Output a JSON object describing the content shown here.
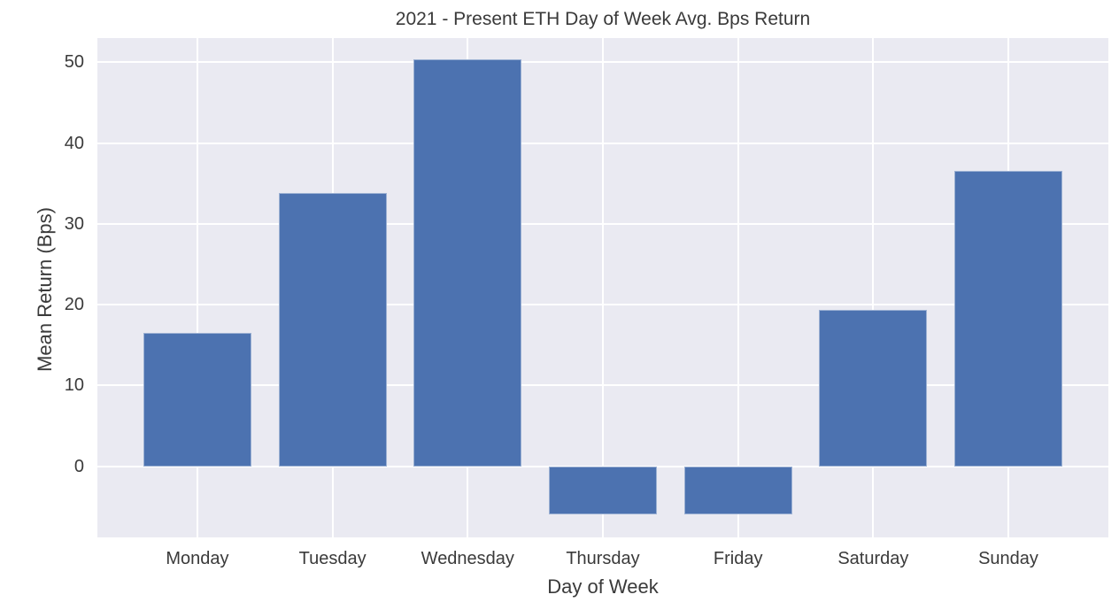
{
  "chart_data": {
    "type": "bar",
    "title": "2021 - Present ETH Day of Week Avg. Bps Return",
    "xlabel": "Day of Week",
    "ylabel": "Mean Return (Bps)",
    "categories": [
      "Monday",
      "Tuesday",
      "Wednesday",
      "Thursday",
      "Friday",
      "Saturday",
      "Sunday"
    ],
    "values": [
      16.5,
      33.8,
      50.4,
      -5.9,
      -6.0,
      19.4,
      36.6
    ],
    "yticks": [
      0,
      10,
      20,
      30,
      40,
      50
    ],
    "ytick_labels": [
      "0",
      "10",
      "20",
      "30",
      "40",
      "50"
    ],
    "ylim": [
      -8.8,
      53.0
    ],
    "xlim": [
      -0.74,
      6.74
    ],
    "bar_width_units": 0.8,
    "grid": true,
    "legend": null,
    "colors": {
      "bar": "#4c72b0",
      "plot_background": "#eaeaf2",
      "gridline": "#ffffff",
      "figure_background": "#ffffff",
      "text": "#3a3a3a"
    }
  }
}
